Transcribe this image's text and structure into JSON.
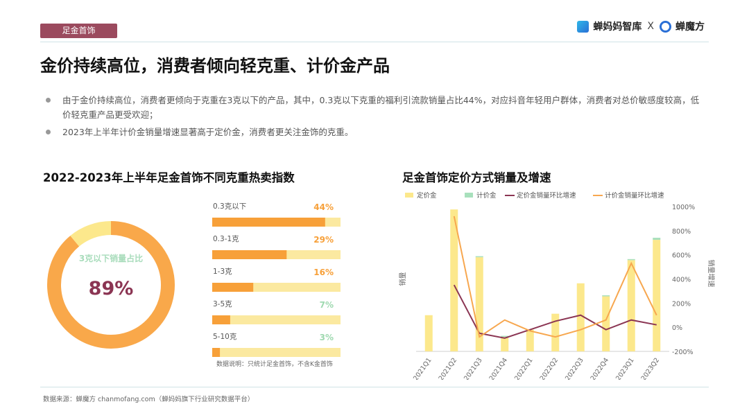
{
  "header": {
    "tag": "足金首饰",
    "brand_left": "蝉妈妈智库",
    "brand_sep": "X",
    "brand_right": "蝉魔方"
  },
  "title": "金价持续高位，消费者倾向轻克重、计价金产品",
  "bullets": [
    "由于金价持续高位，消费者更倾向于克重在3克以下的产品，其中，0.3克以下克重的福利引流款销量占比44%，对应抖音年轻用户群体，消费者对总价敏感度较高，低价轻克重产品更受欢迎；",
    "2023年上半年计价金销量增速显著高于定价金，消费者更关注金饰的克重。"
  ],
  "left_title": "2022-2023年上半年足金首饰不同克重热卖指数",
  "right_title": "足金首饰定价方式销量及增速",
  "footer": {
    "source": "数据来源：蝉魔方 chanmofang.com（蝉妈妈旗下行业研究数据平台）"
  },
  "chart_data": [
    {
      "type": "pie",
      "center_label": "3克以下销量占比",
      "center_value": "89%",
      "slices": [
        {
          "name": "3克以下",
          "value": 89
        },
        {
          "name": "其他",
          "value": 11
        }
      ],
      "colors": [
        "#f9a84a",
        "#fce88c"
      ]
    },
    {
      "type": "bar",
      "categories": [
        "0.3克以下",
        "0.3-1克",
        "1-3克",
        "3-5克",
        "5-10克"
      ],
      "values": [
        44,
        29,
        16,
        7,
        3
      ],
      "labels": [
        "44%",
        "29%",
        "16%",
        "7%",
        "3%"
      ],
      "label_colors": [
        "#f7a039",
        "#f7a039",
        "#f7a039",
        "#9fd9b0",
        "#9fd9b0"
      ],
      "note": "数据说明：只统计足金首饰，不含K金首饰",
      "max": 100
    },
    {
      "type": "bar",
      "categories": [
        "2021Q1",
        "2021Q2",
        "2021Q3",
        "2021Q4",
        "2022Q1",
        "2022Q2",
        "2022Q3",
        "2022Q4",
        "2023Q1",
        "2023Q2"
      ],
      "series": [
        {
          "name": "定价金",
          "values": [
            25,
            98,
            65,
            10,
            15,
            26,
            47,
            38,
            63,
            77
          ],
          "color": "#fce88c"
        },
        {
          "name": "计价金",
          "values": [
            0,
            0,
            1,
            1,
            0,
            0,
            0,
            1,
            1,
            2
          ],
          "color": "#a8e0bc"
        }
      ],
      "lines": [
        {
          "name": "定价金销量环比增速",
          "values": [
            null,
            350,
            -50,
            -90,
            -20,
            50,
            100,
            -20,
            60,
            20
          ],
          "color": "#8b3553"
        },
        {
          "name": "计价金销量环比增速",
          "values": [
            null,
            920,
            -80,
            60,
            -30,
            -80,
            -20,
            60,
            530,
            100
          ],
          "color": "#f7a74f"
        }
      ],
      "ylabel": "销量",
      "y2label": "销量增速",
      "y2_ticks": [
        "1000%",
        "800%",
        "600%",
        "400%",
        "200%",
        "0%",
        "-200%"
      ],
      "y2lim": [
        -200,
        1000
      ],
      "legend_position": "top"
    }
  ]
}
